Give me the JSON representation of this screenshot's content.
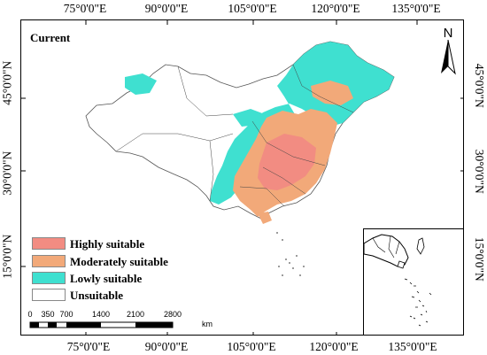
{
  "map": {
    "title": "Current",
    "north_label": "N",
    "top_longitudes": [
      "75°0'0\"E",
      "90°0'0\"E",
      "105°0'0\"E",
      "120°0'0\"E",
      "135°0'0\"E"
    ],
    "bottom_longitudes": [
      "75°0'0\"E",
      "90°0'0\"E",
      "105°0'0\"E",
      "120°0'0\"E",
      "135°0'0\"E"
    ],
    "left_latitudes": [
      "45°0'0\"N",
      "30°0'0\"N",
      "15°0'0\"N"
    ],
    "right_latitudes": [
      "45°0'0\"N",
      "30°0'0\"N",
      "15°0'0\"N"
    ]
  },
  "legend": {
    "items": [
      {
        "label": "Highly suitable",
        "color": "#f28c82"
      },
      {
        "label": "Moderately suitable",
        "color": "#f2a979"
      },
      {
        "label": "Lowly suitable",
        "color": "#3fe0d0"
      },
      {
        "label": "Unsuitable",
        "color": "#ffffff"
      }
    ]
  },
  "scale_bar": {
    "ticks": [
      "0",
      "350",
      "700",
      "1400",
      "2100",
      "2800"
    ],
    "unit": "km"
  }
}
